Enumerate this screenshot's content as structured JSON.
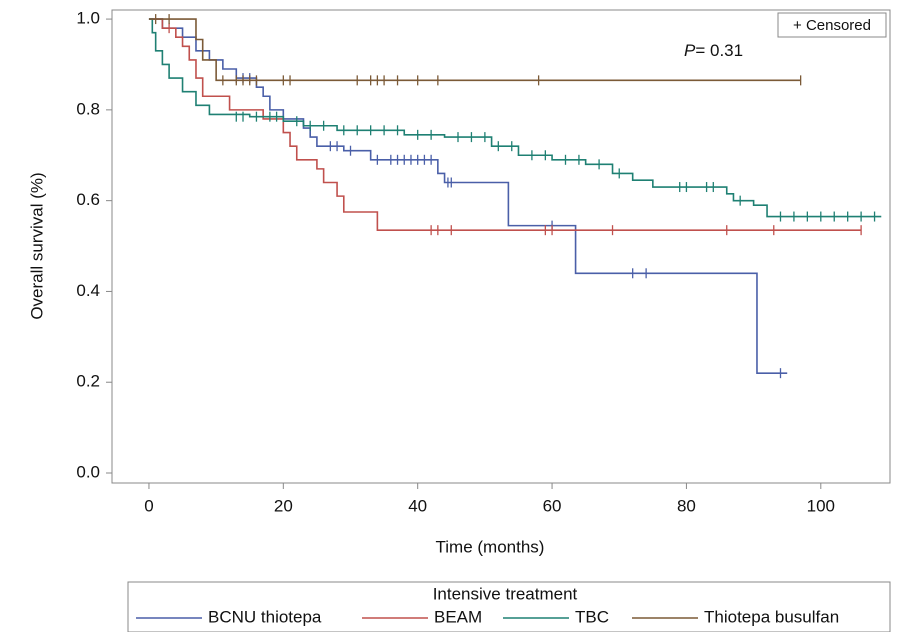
{
  "chart_data": {
    "type": "kaplan-meier",
    "x_label": "Time (months)",
    "y_label": "Overall survival (%)",
    "xlim": [
      -5.5,
      110.3
    ],
    "ylim": [
      -0.022,
      1.02
    ],
    "xticks": [
      0,
      20,
      40,
      60,
      80,
      100
    ],
    "yticks": [
      {
        "value": 0,
        "label": "0.0"
      },
      0.2,
      0.4,
      0.6,
      0.8,
      {
        "value": 1,
        "label": "1.0"
      }
    ],
    "censored_label": "+ Censored",
    "p_symbol": "P",
    "p_text": "= 0.31",
    "legend_title": "Intensive treatment",
    "series": [
      {
        "name": "BCNU thiotepa",
        "color": "#4a5fa8",
        "x": [
          0,
          2,
          5,
          7,
          9,
          11,
          13,
          16,
          17,
          18,
          20,
          23,
          24,
          25,
          29,
          33,
          43,
          44,
          53.5,
          63.5,
          90.5,
          95
        ],
        "values": [
          1.0,
          0.98,
          0.96,
          0.93,
          0.91,
          0.89,
          0.87,
          0.85,
          0.83,
          0.8,
          0.78,
          0.76,
          0.74,
          0.72,
          0.71,
          0.69,
          0.66,
          0.64,
          0.545,
          0.44,
          0.22,
          0.22
        ],
        "censor_x": [
          13,
          14,
          15,
          27,
          28,
          30,
          34,
          36,
          37,
          38,
          39,
          40,
          41,
          42,
          44.5,
          45,
          60,
          72,
          74,
          94
        ],
        "censor_values": [
          0.87,
          0.87,
          0.87,
          0.72,
          0.72,
          0.71,
          0.69,
          0.69,
          0.69,
          0.69,
          0.69,
          0.69,
          0.69,
          0.69,
          0.64,
          0.64,
          0.545,
          0.44,
          0.44,
          0.22
        ]
      },
      {
        "name": "BEAM",
        "color": "#c0504d",
        "x": [
          0,
          2,
          4,
          5,
          6,
          7,
          8,
          12,
          17,
          20,
          21,
          22,
          25,
          26,
          28,
          29,
          34,
          106
        ],
        "values": [
          1.0,
          0.98,
          0.96,
          0.94,
          0.91,
          0.87,
          0.83,
          0.8,
          0.78,
          0.75,
          0.72,
          0.69,
          0.67,
          0.64,
          0.61,
          0.575,
          0.535,
          0.535
        ],
        "censor_x": [
          3,
          42,
          43,
          45,
          59,
          60,
          69,
          86,
          93,
          106
        ],
        "censor_values": [
          0.98,
          0.535,
          0.535,
          0.535,
          0.535,
          0.535,
          0.535,
          0.535,
          0.535,
          0.535
        ]
      },
      {
        "name": "TBC",
        "color": "#1f8073",
        "x": [
          0,
          0.5,
          1,
          2,
          3,
          5,
          7,
          9,
          15,
          20,
          23,
          28,
          38,
          44,
          51,
          55,
          60,
          65,
          69,
          72,
          75,
          86,
          87,
          90,
          92,
          109
        ],
        "values": [
          1.0,
          0.97,
          0.93,
          0.9,
          0.87,
          0.84,
          0.81,
          0.79,
          0.785,
          0.775,
          0.765,
          0.755,
          0.745,
          0.74,
          0.72,
          0.7,
          0.69,
          0.68,
          0.66,
          0.645,
          0.63,
          0.615,
          0.6,
          0.59,
          0.565,
          0.565
        ],
        "censor_x": [
          13,
          14,
          16,
          18,
          19,
          22,
          24,
          26,
          29,
          31,
          33,
          35,
          37,
          40,
          42,
          46,
          48,
          50,
          52,
          54,
          57,
          59,
          62,
          64,
          67,
          70,
          79,
          80,
          83,
          84,
          88,
          94,
          96,
          98,
          100,
          102,
          104,
          106,
          108
        ],
        "censor_values": [
          0.785,
          0.785,
          0.785,
          0.785,
          0.785,
          0.775,
          0.765,
          0.765,
          0.755,
          0.755,
          0.755,
          0.755,
          0.755,
          0.745,
          0.745,
          0.74,
          0.74,
          0.74,
          0.72,
          0.72,
          0.7,
          0.7,
          0.69,
          0.69,
          0.68,
          0.66,
          0.63,
          0.63,
          0.63,
          0.63,
          0.6,
          0.565,
          0.565,
          0.565,
          0.565,
          0.565,
          0.565,
          0.565,
          0.565
        ]
      },
      {
        "name": "Thiotepa busulfan",
        "color": "#7b5a37",
        "x": [
          0,
          7,
          8,
          10,
          97
        ],
        "values": [
          1.0,
          0.955,
          0.91,
          0.865,
          0.865
        ],
        "censor_x": [
          1,
          3,
          11,
          13,
          14,
          15,
          16,
          20,
          21,
          31,
          33,
          34,
          35,
          37,
          40,
          43,
          58,
          97
        ],
        "censor_values": [
          1.0,
          1.0,
          0.865,
          0.865,
          0.865,
          0.865,
          0.865,
          0.865,
          0.865,
          0.865,
          0.865,
          0.865,
          0.865,
          0.865,
          0.865,
          0.865,
          0.865,
          0.865
        ]
      }
    ]
  }
}
